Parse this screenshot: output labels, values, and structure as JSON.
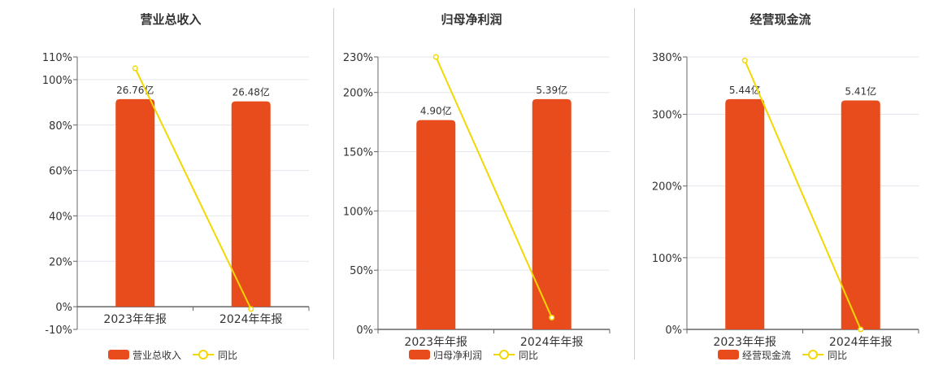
{
  "charts": [
    {
      "title": "营业总收入",
      "legend": {
        "bar_label": "营业总收入",
        "line_label": "同比"
      },
      "categories": [
        "2023年年报",
        "2024年年报"
      ],
      "bar_labels": [
        "26.76亿",
        "26.48亿"
      ],
      "bar_values": [
        26.76,
        26.48
      ],
      "line_values": [
        105,
        -1
      ],
      "y_ticks": [
        110,
        100,
        80,
        60,
        40,
        20,
        0,
        -10
      ],
      "y_tick_labels": [
        "110%",
        "100%",
        "80%",
        "60%",
        "40%",
        "20%",
        "0%",
        "-10%"
      ],
      "ylim": [
        -10,
        110
      ]
    },
    {
      "title": "归母净利润",
      "legend": {
        "bar_label": "归母净利润",
        "line_label": "同比"
      },
      "categories": [
        "2023年年报",
        "2024年年报"
      ],
      "bar_labels": [
        "4.90亿",
        "5.39亿"
      ],
      "bar_values": [
        4.9,
        5.39
      ],
      "line_values": [
        230,
        10
      ],
      "y_ticks": [
        230,
        200,
        150,
        100,
        50,
        0
      ],
      "y_tick_labels": [
        "230%",
        "200%",
        "150%",
        "100%",
        "50%",
        "0%"
      ],
      "ylim": [
        0,
        230
      ]
    },
    {
      "title": "经营现金流",
      "legend": {
        "bar_label": "经营现金流",
        "line_label": "同比"
      },
      "categories": [
        "2023年年报",
        "2024年年报"
      ],
      "bar_labels": [
        "5.44亿",
        "5.41亿"
      ],
      "bar_values": [
        5.44,
        5.41
      ],
      "line_values": [
        375,
        0
      ],
      "y_ticks": [
        380,
        300,
        200,
        100,
        0
      ],
      "y_tick_labels": [
        "380%",
        "300%",
        "200%",
        "100%",
        "0%"
      ],
      "ylim": [
        0,
        380
      ]
    }
  ],
  "colors": {
    "bar": "#e84c1c",
    "line": "#f2d800",
    "grid": "#e3e6ee",
    "axis": "#666666",
    "text": "#333333"
  },
  "chart_data": [
    {
      "type": "bar",
      "title": "营业总收入",
      "categories": [
        "2023年年报",
        "2024年年报"
      ],
      "series": [
        {
          "name": "营业总收入",
          "type": "bar",
          "values": [
            26.76,
            26.48
          ],
          "unit": "亿"
        },
        {
          "name": "同比",
          "type": "line",
          "values": [
            105,
            -1
          ],
          "unit": "%"
        }
      ],
      "ylim": [
        -10,
        110
      ],
      "grid": true,
      "legend": "bottom"
    },
    {
      "type": "bar",
      "title": "归母净利润",
      "categories": [
        "2023年年报",
        "2024年年报"
      ],
      "series": [
        {
          "name": "归母净利润",
          "type": "bar",
          "values": [
            4.9,
            5.39
          ],
          "unit": "亿"
        },
        {
          "name": "同比",
          "type": "line",
          "values": [
            230,
            10
          ],
          "unit": "%"
        }
      ],
      "ylim": [
        0,
        230
      ],
      "grid": true,
      "legend": "bottom"
    },
    {
      "type": "bar",
      "title": "经营现金流",
      "categories": [
        "2023年年报",
        "2024年年报"
      ],
      "series": [
        {
          "name": "经营现金流",
          "type": "bar",
          "values": [
            5.44,
            5.41
          ],
          "unit": "亿"
        },
        {
          "name": "同比",
          "type": "line",
          "values": [
            375,
            0
          ],
          "unit": "%"
        }
      ],
      "ylim": [
        0,
        380
      ],
      "grid": true,
      "legend": "bottom"
    }
  ]
}
